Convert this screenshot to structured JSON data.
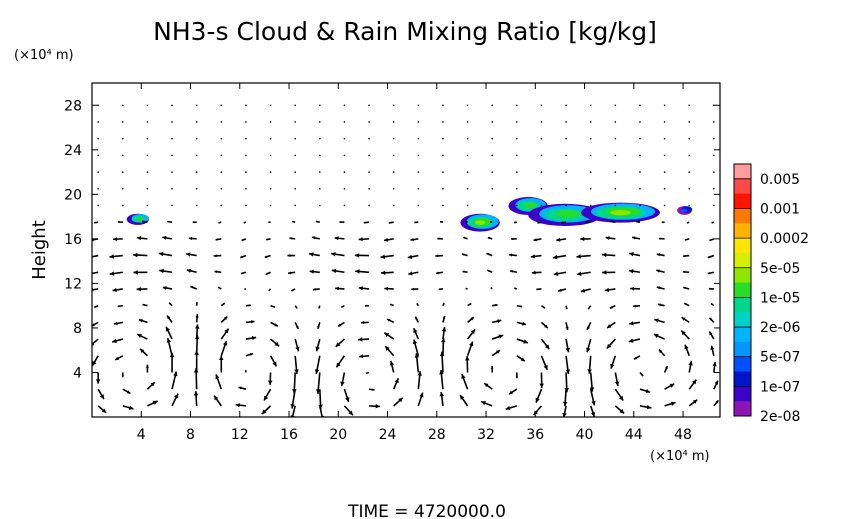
{
  "chart_data": {
    "type": "heatmap",
    "title": "NH3-s Cloud & Rain Mixing Ratio [kg/kg]",
    "ylabel": "Height",
    "y_unit": "(×10⁴ m)",
    "x_unit": "(×10⁴ m)",
    "x_ticks": [
      4,
      8,
      12,
      16,
      20,
      24,
      28,
      32,
      36,
      40,
      44,
      48
    ],
    "y_ticks": [
      4,
      8,
      12,
      16,
      20,
      24,
      28
    ],
    "xlim": [
      0,
      51
    ],
    "ylim": [
      0,
      30
    ],
    "colorbar": {
      "labels": [
        "0.005",
        "0.001",
        "0.0002",
        "5e-05",
        "1e-05",
        "2e-06",
        "5e-07",
        "1e-07",
        "2e-08"
      ],
      "colors": [
        "#ff9c9c",
        "#ff4a4a",
        "#ff1400",
        "#ff7a00",
        "#ffb400",
        "#ffe600",
        "#d4f000",
        "#8ce600",
        "#28dc28",
        "#00d68c",
        "#00d2c8",
        "#00b4ff",
        "#0096ff",
        "#0050ff",
        "#0014c8",
        "#3c00c8",
        "#8c14b4"
      ]
    },
    "cloud_regions": [
      {
        "x": 3.8,
        "y": 17.8,
        "rx": 0.9,
        "ry": 0.5,
        "level": "1e-05"
      },
      {
        "x": 31.6,
        "y": 17.5,
        "rx": 1.6,
        "ry": 0.8,
        "level": "5e-05"
      },
      {
        "x": 35.5,
        "y": 19.0,
        "rx": 1.6,
        "ry": 0.8,
        "level": "1e-05"
      },
      {
        "x": 38.5,
        "y": 18.2,
        "rx": 3.0,
        "ry": 1.0,
        "level": "1e-05"
      },
      {
        "x": 43.0,
        "y": 18.4,
        "rx": 3.2,
        "ry": 0.9,
        "level": "5e-05"
      },
      {
        "x": 48.2,
        "y": 18.6,
        "rx": 0.6,
        "ry": 0.4,
        "level": "2e-08"
      }
    ],
    "vector_field": {
      "x_range": [
        0.5,
        50.5
      ],
      "x_step": 2,
      "y_range": [
        1,
        29
      ],
      "y_step": 1.5,
      "vortex_centers": [
        {
          "x": 4,
          "y": 4,
          "strength": 1,
          "radius": 4
        },
        {
          "x": 12.5,
          "y": 4,
          "strength": -1,
          "radius": 4
        },
        {
          "x": 22.5,
          "y": 3.5,
          "strength": 1,
          "radius": 4
        },
        {
          "x": 33.5,
          "y": 4,
          "strength": -1,
          "radius": 4
        },
        {
          "x": 45,
          "y": 4.5,
          "strength": 1,
          "radius": 4
        }
      ]
    },
    "time_label": "TIME  =  4720000.0"
  }
}
